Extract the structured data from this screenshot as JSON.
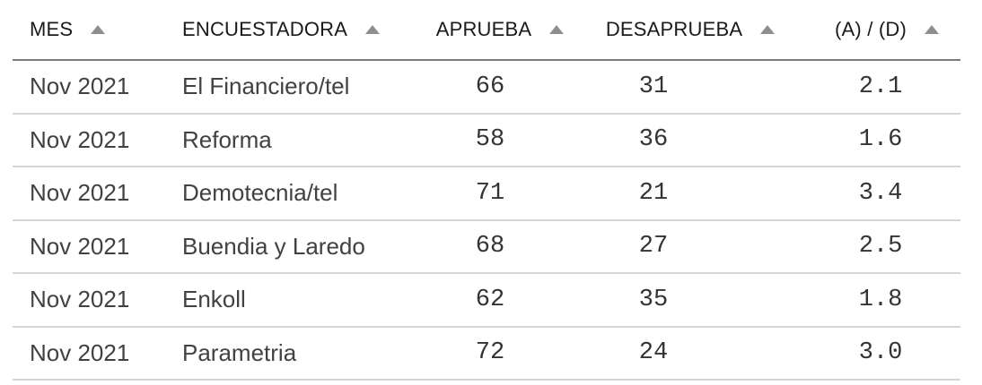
{
  "table": {
    "columns": [
      {
        "label": "MES",
        "sort_icon": "triangle-up"
      },
      {
        "label": "ENCUESTADORA",
        "sort_icon": "triangle-up"
      },
      {
        "label": "APRUEBA",
        "sort_icon": "triangle-up"
      },
      {
        "label": "DESAPRUEBA",
        "sort_icon": "triangle-up"
      },
      {
        "label": "(A) / (D)",
        "sort_icon": "triangle-up"
      }
    ],
    "rows": [
      {
        "mes": "Nov 2021",
        "encuestadora": "El Financiero/tel",
        "aprueba": "66",
        "desaprueba": "31",
        "ratio": "2.1"
      },
      {
        "mes": "Nov 2021",
        "encuestadora": "Reforma",
        "aprueba": "58",
        "desaprueba": "36",
        "ratio": "1.6"
      },
      {
        "mes": "Nov 2021",
        "encuestadora": "Demotecnia/tel",
        "aprueba": "71",
        "desaprueba": "21",
        "ratio": "3.4"
      },
      {
        "mes": "Nov 2021",
        "encuestadora": "Buendia y Laredo",
        "aprueba": "68",
        "desaprueba": "27",
        "ratio": "2.5"
      },
      {
        "mes": "Nov 2021",
        "encuestadora": "Enkoll",
        "aprueba": "62",
        "desaprueba": "35",
        "ratio": "1.8"
      },
      {
        "mes": "Nov 2021",
        "encuestadora": "Parametria",
        "aprueba": "72",
        "desaprueba": "24",
        "ratio": "3.0"
      }
    ],
    "colors": {
      "header_text": "#1a1a1a",
      "row_text": "#414141",
      "number_text": "#333333",
      "sort_arrow": "#8e8e8e",
      "header_rule": "#7a7a7a",
      "row_rule": "#d5d5d5",
      "background": "#ffffff"
    }
  }
}
